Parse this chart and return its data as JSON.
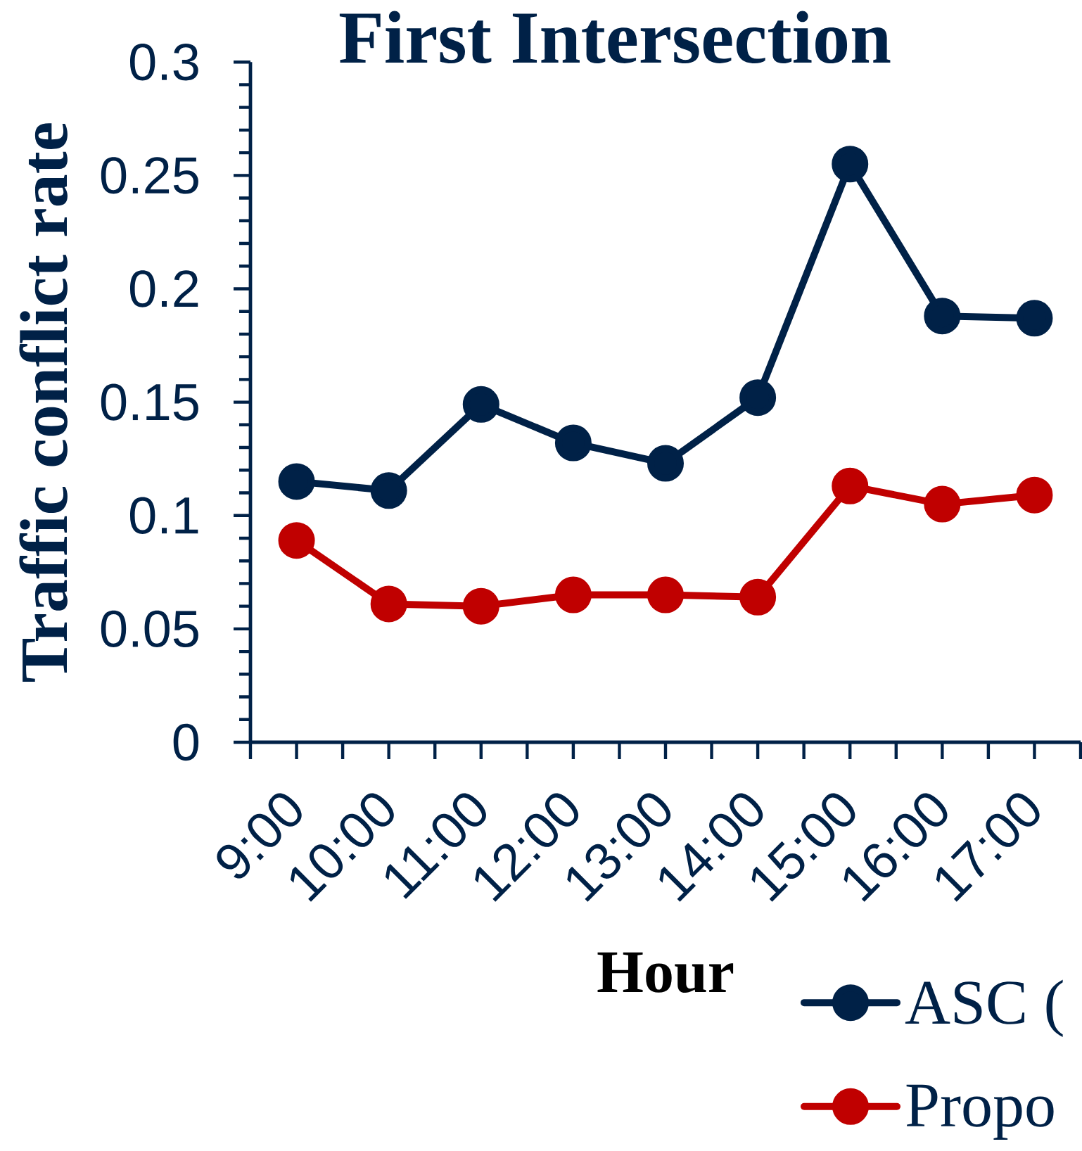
{
  "chart_data": {
    "type": "line",
    "title": "First Intersection",
    "xlabel": "Hour",
    "ylabel": "Traffic conflict rate",
    "categories": [
      "9:00",
      "10:00",
      "11:00",
      "12:00",
      "13:00",
      "14:00",
      "15:00",
      "16:00",
      "17:00"
    ],
    "series": [
      {
        "name": "ASC (",
        "color": "#002147",
        "values": [
          0.115,
          0.111,
          0.149,
          0.132,
          0.123,
          0.152,
          0.255,
          0.188,
          0.187
        ]
      },
      {
        "name": "Propo",
        "color": "#c00000",
        "values": [
          0.089,
          0.061,
          0.06,
          0.065,
          0.065,
          0.064,
          0.113,
          0.105,
          0.109
        ]
      }
    ],
    "ylim": [
      0,
      0.3
    ],
    "yticks": [
      0,
      0.05,
      0.1,
      0.15,
      0.2,
      0.25,
      0.3
    ],
    "legend": "bottom right",
    "marker": "circle",
    "line_style": "solid"
  }
}
